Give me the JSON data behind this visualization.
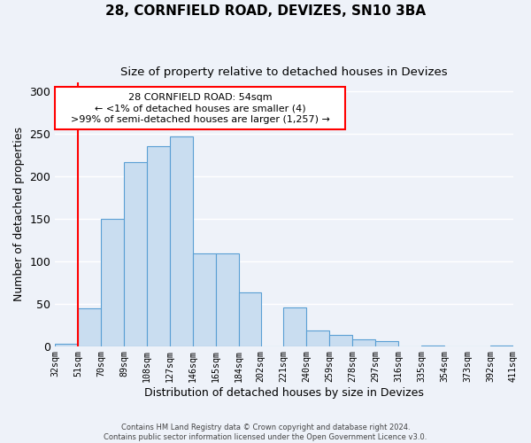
{
  "title": "28, CORNFIELD ROAD, DEVIZES, SN10 3BA",
  "subtitle": "Size of property relative to detached houses in Devizes",
  "xlabel": "Distribution of detached houses by size in Devizes",
  "ylabel": "Number of detached properties",
  "bar_edges": [
    32,
    51,
    70,
    89,
    108,
    127,
    146,
    165,
    184,
    202,
    221,
    240,
    259,
    278,
    297,
    316,
    335,
    354,
    373,
    392,
    411
  ],
  "bar_heights": [
    3,
    44,
    150,
    217,
    235,
    247,
    109,
    109,
    63,
    0,
    45,
    18,
    13,
    8,
    6,
    0,
    1,
    0,
    0,
    1
  ],
  "bar_color": "#c9ddf0",
  "bar_edgecolor": "#5a9fd4",
  "tick_labels": [
    "32sqm",
    "51sqm",
    "70sqm",
    "89sqm",
    "108sqm",
    "127sqm",
    "146sqm",
    "165sqm",
    "184sqm",
    "202sqm",
    "221sqm",
    "240sqm",
    "259sqm",
    "278sqm",
    "297sqm",
    "316sqm",
    "335sqm",
    "354sqm",
    "373sqm",
    "392sqm",
    "411sqm"
  ],
  "ylim": [
    0,
    310
  ],
  "yticks": [
    0,
    50,
    100,
    150,
    200,
    250,
    300
  ],
  "red_line_x": 51,
  "annotation_line1": "28 CORNFIELD ROAD: 54sqm",
  "annotation_line2": "← <1% of detached houses are smaller (4)",
  "annotation_line3": ">99% of semi-detached houses are larger (1,257) →",
  "footer_line1": "Contains HM Land Registry data © Crown copyright and database right 2024.",
  "footer_line2": "Contains public sector information licensed under the Open Government Licence v3.0.",
  "background_color": "#eef2f9",
  "grid_color": "#ffffff"
}
